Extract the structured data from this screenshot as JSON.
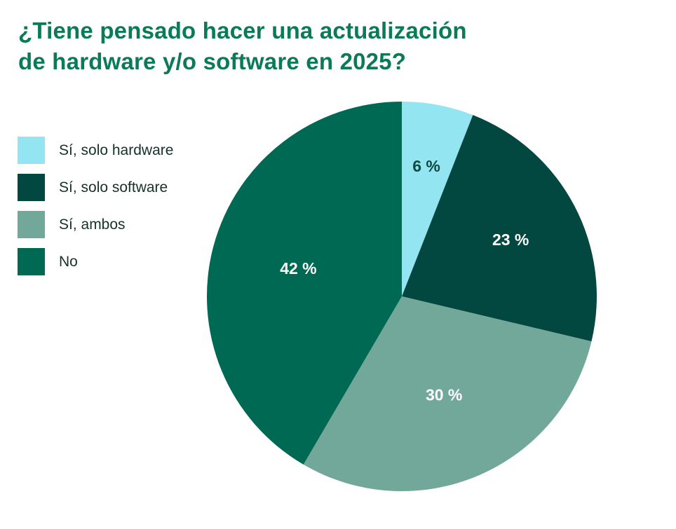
{
  "chart_data": {
    "type": "pie",
    "title": {
      "lines": [
        "¿Tiene pensado hacer una actualización",
        "de hardware y/o software en 2025?"
      ]
    },
    "legend_position": "left",
    "start_angle_deg": 0,
    "direction": "clockwise",
    "slices": [
      {
        "label": "Sí, solo hardware",
        "value": 6,
        "display": "6 %",
        "color": "#94e5f2",
        "text_color": "#0c4a44"
      },
      {
        "label": "Sí, solo software",
        "value": 23,
        "display": "23 %",
        "color": "#024840",
        "text_color": "#ffffff"
      },
      {
        "label": "Sí, ambos",
        "value": 30,
        "display": "30 %",
        "color": "#71a899",
        "text_color": "#ffffff"
      },
      {
        "label": "No",
        "value": 42,
        "display": "42 %",
        "color": "#006954",
        "text_color": "#ffffff"
      }
    ]
  }
}
